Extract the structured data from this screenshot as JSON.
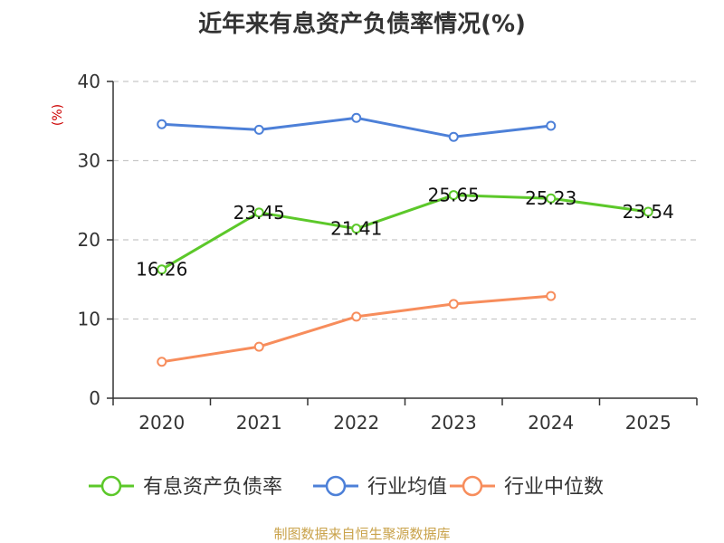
{
  "chart_data": {
    "type": "line",
    "title": "近年来有息资产负债率情况(%)",
    "ylabel": "(%)",
    "categories": [
      "2020",
      "2021",
      "2022",
      "2023",
      "2024",
      "2025"
    ],
    "ylim": [
      0,
      40
    ],
    "yticks": [
      0,
      10,
      20,
      30,
      40
    ],
    "grid": true,
    "legend_position": "bottom",
    "series": [
      {
        "name": "有息资产负债率",
        "color": "#5cc82a",
        "values": [
          16.26,
          23.45,
          21.41,
          25.65,
          25.23,
          23.54
        ],
        "labels": [
          "16.26",
          "23.45",
          "21.41",
          "25.65",
          "25.23",
          "23.54"
        ]
      },
      {
        "name": "行业均值",
        "color": "#4d80d8",
        "values": [
          34.6,
          33.9,
          35.4,
          33.0,
          34.4,
          null
        ]
      },
      {
        "name": "行业中位数",
        "color": "#f78d5c",
        "values": [
          4.6,
          6.5,
          10.3,
          11.9,
          12.9,
          null
        ]
      }
    ],
    "source": "制图数据来自恒生聚源数据库"
  }
}
